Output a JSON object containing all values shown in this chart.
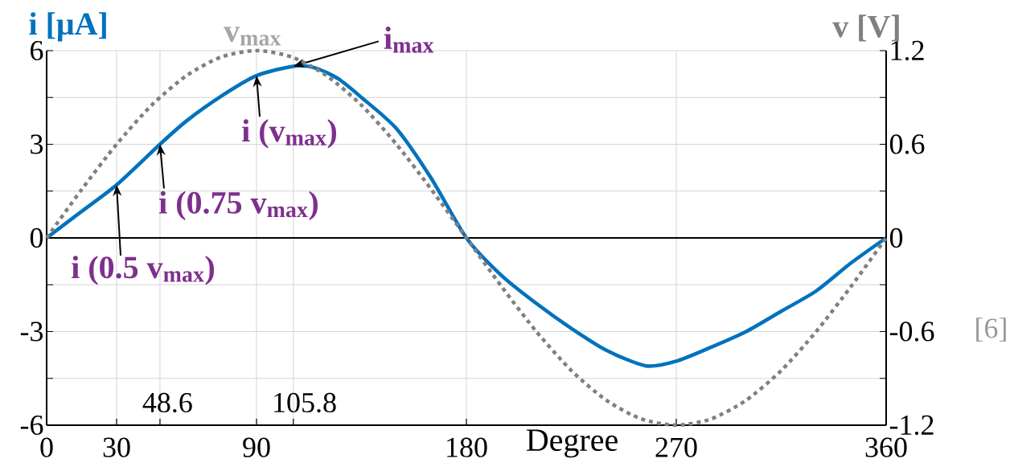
{
  "chart_data": {
    "type": "line",
    "xlabel": "Degree",
    "ylabel": "i [μA]",
    "y2label": "v [V]",
    "xlim": [
      0,
      360
    ],
    "xticks": [
      0,
      30,
      {
        "value": 48.6,
        "label": null
      },
      90,
      {
        "value": 105.8,
        "label": null
      },
      180,
      270,
      360
    ],
    "ylim": [
      -6,
      6
    ],
    "yticks": [
      -6,
      {
        "value": -4.5,
        "label": null
      },
      -3,
      {
        "value": -1.5,
        "label": null
      },
      0,
      {
        "value": 1.5,
        "label": null
      },
      3,
      {
        "value": 4.5,
        "label": null
      },
      6
    ],
    "y2lim": [
      -1.2,
      1.2
    ],
    "y2ticks": [
      -1.2,
      {
        "value": -0.9,
        "label": null
      },
      -0.6,
      {
        "value": -0.3,
        "label": null
      },
      0,
      {
        "value": 0.3,
        "label": null
      },
      0.6,
      {
        "value": 0.9,
        "label": null
      },
      1.2
    ],
    "grid": true,
    "series": [
      {
        "color": "#0072bd",
        "line_style": "solid",
        "x": [
          0,
          15,
          30,
          48.6,
          60,
          75,
          90,
          105.8,
          115,
          125,
          135,
          150,
          165,
          180,
          195,
          210,
          225,
          240,
          257,
          270,
          285,
          300,
          315,
          330,
          345,
          360
        ],
        "values": [
          0,
          0.85,
          1.7,
          3.0,
          3.75,
          4.55,
          5.2,
          5.5,
          5.45,
          5.1,
          4.5,
          3.5,
          1.9,
          0,
          -1.2,
          -2.1,
          -2.9,
          -3.6,
          -4.1,
          -3.95,
          -3.5,
          -3.0,
          -2.35,
          -1.7,
          -0.8,
          0
        ]
      },
      {
        "color": "#808080",
        "line_style": "dotted",
        "axis": "y2",
        "x": [
          0,
          15,
          30,
          45,
          60,
          75,
          90,
          105,
          120,
          135,
          150,
          165,
          180,
          195,
          210,
          225,
          240,
          255,
          270,
          285,
          300,
          315,
          330,
          345,
          360
        ],
        "values": [
          0,
          0.31,
          0.6,
          0.85,
          1.04,
          1.16,
          1.2,
          1.16,
          1.04,
          0.85,
          0.6,
          0.31,
          0,
          -0.31,
          -0.6,
          -0.85,
          -1.04,
          -1.16,
          -1.2,
          -1.16,
          -1.04,
          -0.85,
          -0.6,
          -0.31,
          0
        ]
      }
    ],
    "ref_lines": [
      {
        "axis": "y",
        "value": 0,
        "color": "#000000"
      }
    ],
    "annotations": [
      {
        "text": "v$_{max}$",
        "x": 90,
        "y": 6
      },
      {
        "text": "i$_{max}$",
        "x": 105.8,
        "y": 5.5
      },
      {
        "text": "i (v$_{max}$)",
        "x": 90,
        "y": 5.2
      },
      {
        "text": "i (0.75 v$_{max}$)",
        "x": 48.6,
        "y": 3.0
      },
      {
        "text": "i (0.5 v$_{max}$)",
        "x": 30,
        "y": 1.7
      },
      "48.6",
      "105.8",
      "[6]"
    ]
  }
}
